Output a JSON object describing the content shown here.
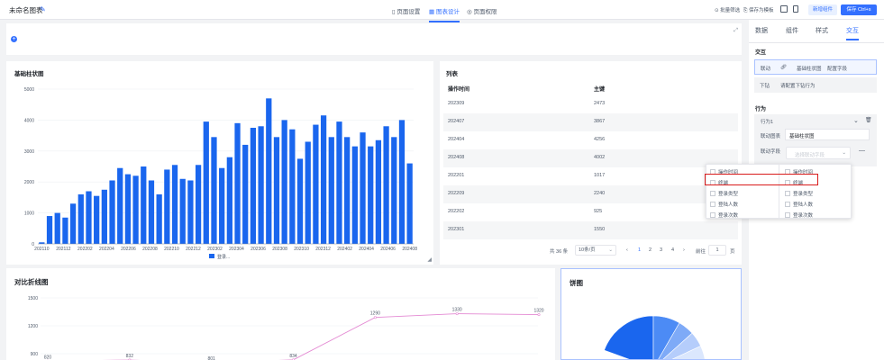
{
  "topbar": {
    "title": "未命名图表",
    "nav": [
      "页面设置",
      "图表设计",
      "页面权限"
    ],
    "tools": [
      "批量筛选",
      "保存为模板"
    ],
    "new_component": "新增组件",
    "save": "保存 Ctrl+s"
  },
  "bar_chart": {
    "title": "基础柱状图",
    "legend": "登录..."
  },
  "chart_data": [
    {
      "type": "bar",
      "title": "基础柱状图",
      "x_tick_labels": [
        "202110",
        "202112",
        "202202",
        "202204",
        "202206",
        "202208",
        "202210",
        "202212",
        "202302",
        "202304",
        "202306",
        "202308",
        "202310",
        "202312",
        "202402",
        "202404",
        "202406",
        "202408"
      ],
      "values": [
        50,
        900,
        1000,
        850,
        1300,
        1600,
        1700,
        1550,
        1750,
        2050,
        2450,
        2250,
        2200,
        2500,
        2050,
        1600,
        2400,
        2550,
        2100,
        2050,
        2550,
        3950,
        3450,
        2450,
        2800,
        3900,
        3200,
        3750,
        3800,
        4700,
        3450,
        4000,
        3700,
        2750,
        3300,
        3850,
        4150,
        3450,
        3950,
        3450,
        3150,
        3600,
        3150,
        3350,
        3800,
        3450,
        4000,
        2600
      ],
      "yticks": [
        0,
        1000,
        2000,
        3000,
        4000,
        5000
      ],
      "ylim": [
        0,
        5000
      ],
      "legend": [
        "登录..."
      ],
      "color": "#1a66ee"
    },
    {
      "type": "line",
      "title": "对比折线图",
      "data_labels": [
        {
          "x": 0,
          "y": 820
        },
        {
          "x": 1,
          "y": 832
        },
        {
          "x": 2,
          "y": 801
        },
        {
          "x": 3,
          "y": 834
        },
        {
          "x": 4,
          "y": 1290
        },
        {
          "x": 5,
          "y": 1330
        },
        {
          "x": 6,
          "y": 1320
        }
      ],
      "yticks": [
        900,
        1200,
        1500
      ],
      "color": "#e48ad3"
    },
    {
      "type": "pie",
      "title": "饼图",
      "colors": [
        "#1a66ee",
        "#4c8bf5",
        "#7eaaf7",
        "#b5cdfb",
        "#dbe7fd"
      ]
    }
  ],
  "list": {
    "title": "列表",
    "columns": [
      "操作时间",
      "主键"
    ],
    "rows": [
      [
        "202309",
        "2473"
      ],
      [
        "202407",
        "3867"
      ],
      [
        "202404",
        "4256"
      ],
      [
        "202408",
        "4002"
      ],
      [
        "202201",
        "1017"
      ],
      [
        "202209",
        "2240"
      ],
      [
        "202202",
        "925"
      ],
      [
        "202301",
        "1550"
      ]
    ],
    "pager": {
      "total": "共 36 条",
      "size": "10条/页",
      "pages": [
        "1",
        "2",
        "3",
        "4"
      ],
      "goto": "前往",
      "goto_value": "1",
      "page_unit": "页"
    }
  },
  "panel": {
    "tabs": [
      "数据",
      "组件",
      "样式",
      "交互"
    ],
    "interaction_title": "交互",
    "linkage_label": "联动",
    "linkage_target": "基础柱状图",
    "linkage_config": "配置字段",
    "drill_label": "下钻",
    "drill_value": "请配置下钻行为",
    "behavior_title": "行为",
    "behavior_item": "行为1",
    "link_chart_label": "联动图表",
    "link_chart_value": "基础柱状图",
    "link_field_label": "联动字段",
    "link_field_placeholder": "选择联动字段",
    "dropdown_left": [
      "操作时间",
      "终端",
      "登录类型",
      "登陆人数",
      "登录次数"
    ],
    "dropdown_right": [
      "操作时间",
      "终端",
      "登录类型",
      "登陆人数",
      "登录次数"
    ]
  },
  "line_chart": {
    "title": "对比折线图"
  },
  "pie_chart": {
    "title": "饼图"
  }
}
